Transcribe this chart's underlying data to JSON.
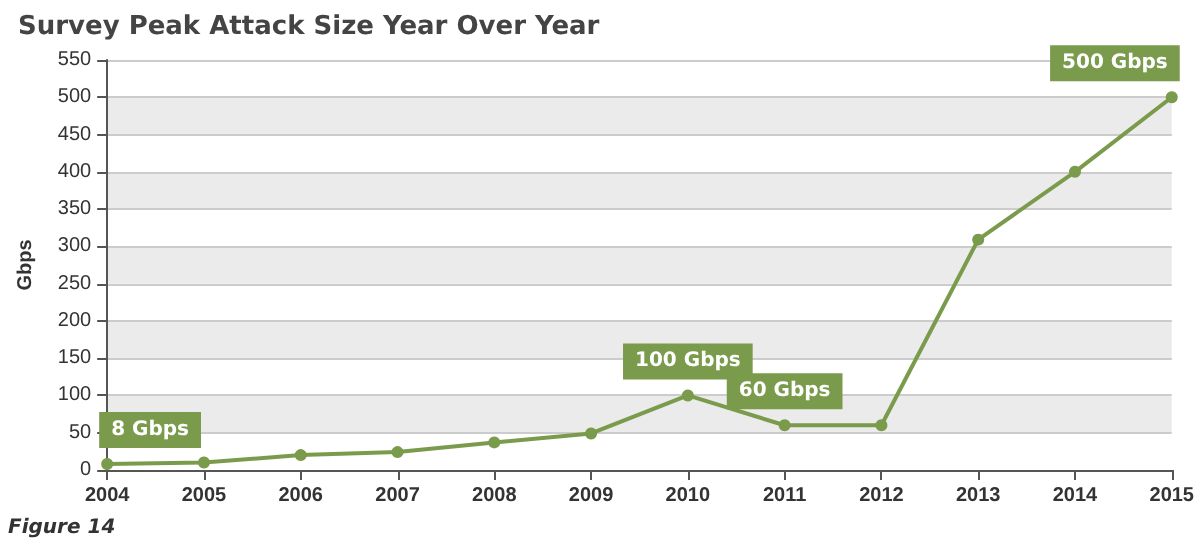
{
  "chart_data": {
    "type": "line",
    "title": "Survey Peak Attack Size Year Over Year",
    "ylabel": "Gbps",
    "categories": [
      "2004",
      "2005",
      "2006",
      "2007",
      "2008",
      "2009",
      "2010",
      "2011",
      "2012",
      "2013",
      "2014",
      "2015"
    ],
    "series": [
      {
        "color": "#7b9b4c",
        "values": [
          8,
          10,
          20,
          24,
          37,
          49,
          100,
          60,
          60,
          309,
          400,
          500
        ]
      }
    ],
    "ylim": [
      0,
      550
    ],
    "yticks": [
      0,
      50,
      100,
      150,
      200,
      250,
      300,
      350,
      400,
      450,
      500,
      550
    ],
    "grid": "y",
    "marker": "circle",
    "line_style": "solid",
    "annotations": [
      {
        "text": "8 Gbps",
        "x": "2004",
        "y": 8
      },
      {
        "text": "100 Gbps",
        "x": "2010",
        "y": 100
      },
      {
        "text": "60 Gbps",
        "x": "2011",
        "y": 60
      },
      {
        "text": "500 Gbps",
        "x": "2015",
        "y": 500
      },
      "Figure 14"
    ]
  }
}
